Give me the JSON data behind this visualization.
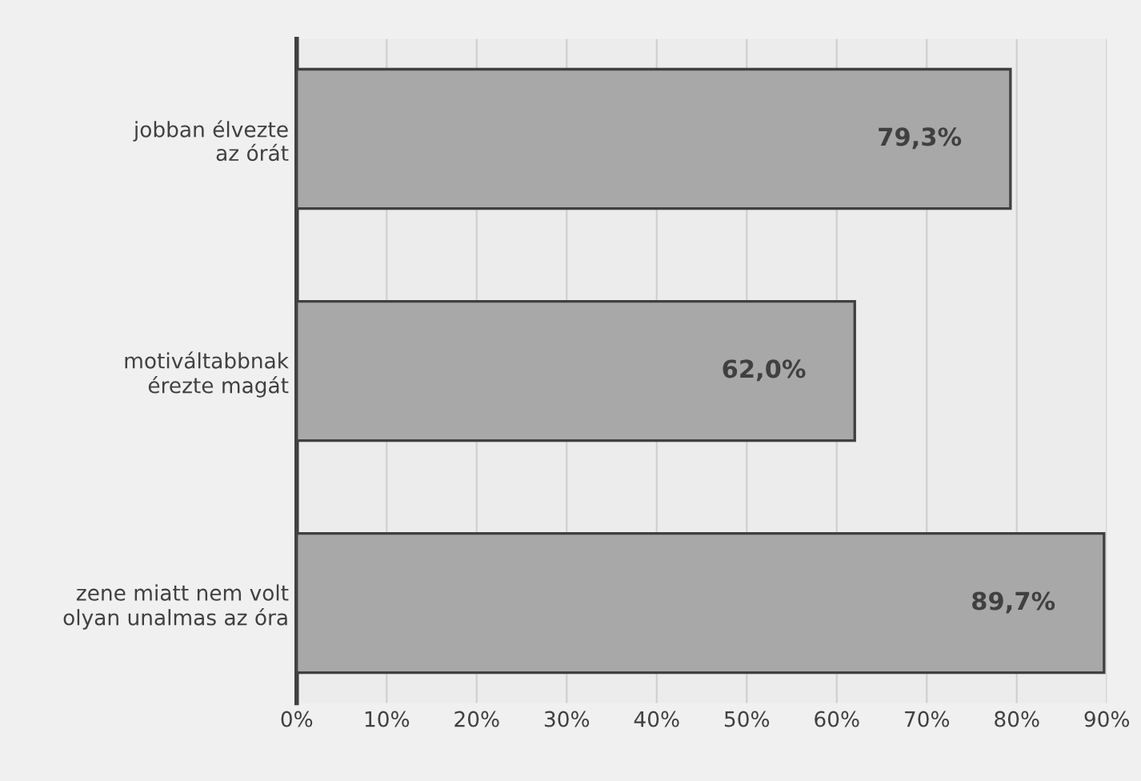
{
  "chart_data": {
    "type": "bar",
    "orientation": "horizontal",
    "categories": [
      "jobban élvezte\naz órát",
      "motiváltabbnak\nérezte magát",
      "zene miatt nem volt\nolyan unalmas az óra"
    ],
    "values": [
      79.3,
      62.0,
      89.7
    ],
    "color": "#a8a8a8",
    "value_labels": [
      "79,3%",
      "62,0%",
      "89,7%"
    ],
    "xlim": [
      0,
      90
    ],
    "xticks": [
      {
        "value": 0,
        "label": "0%"
      },
      {
        "value": 10,
        "label": "10%"
      },
      {
        "value": 20,
        "label": "20%"
      },
      {
        "value": 30,
        "label": "30%"
      },
      {
        "value": 40,
        "label": "40%"
      },
      {
        "value": 50,
        "label": "50%"
      },
      {
        "value": 60,
        "label": "60%"
      },
      {
        "value": 70,
        "label": "70%"
      },
      {
        "value": 80,
        "label": "80%"
      },
      {
        "value": 90,
        "label": "90%"
      }
    ],
    "grid": "x",
    "legend": false
  }
}
